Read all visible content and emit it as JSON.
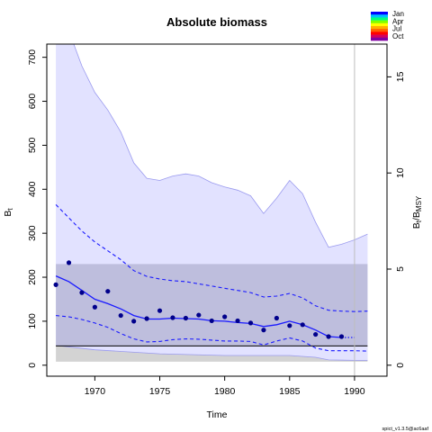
{
  "chart_data": {
    "type": "line",
    "title": "Absolute biomass",
    "xlabel": "Time",
    "ylabel": "B_t",
    "ylabel_right": "B_t/B_MSY",
    "xlim": [
      1966.3,
      1992.5
    ],
    "ylim": [
      -25,
      730
    ],
    "ylim_right_ratio": 43.7,
    "x_ticks": [
      1970,
      1975,
      1980,
      1985,
      1990
    ],
    "y_ticks": [
      0,
      100,
      200,
      300,
      400,
      500,
      600,
      700
    ],
    "y_right_ticks": [
      0,
      5,
      10,
      15
    ],
    "vertical_line_x": 1990,
    "bmsy": 43.7,
    "bmsy_ci": [
      8,
      230
    ],
    "b_ci_outer_upper": {
      "x": [
        1967,
        1968,
        1969,
        1970,
        1971,
        1972,
        1973,
        1974,
        1975,
        1976,
        1977,
        1978,
        1979,
        1980,
        1981,
        1982,
        1983,
        1984,
        1985,
        1986,
        1987,
        1988,
        1989,
        1990,
        1991
      ],
      "y": [
        760,
        760,
        680,
        620,
        580,
        530,
        460,
        425,
        420,
        430,
        435,
        430,
        415,
        405,
        398,
        385,
        345,
        380,
        420,
        390,
        325,
        268,
        275,
        285,
        298
      ]
    },
    "b_ci_outer_lower": {
      "x": [
        1967,
        1970,
        1975,
        1980,
        1985,
        1987,
        1988,
        1990,
        1991
      ],
      "y": [
        45,
        35,
        26,
        22,
        22,
        18,
        12,
        11,
        11
      ]
    },
    "series": [
      {
        "name": "B_t estimate",
        "x": [
          1967,
          1968,
          1969,
          1970,
          1971,
          1972,
          1973,
          1974,
          1975,
          1976,
          1977,
          1978,
          1979,
          1980,
          1981,
          1982,
          1983,
          1984,
          1985,
          1986,
          1987,
          1988,
          1989,
          1990
        ],
        "y": [
          203,
          190,
          170,
          150,
          140,
          128,
          113,
          105,
          105,
          107,
          106,
          105,
          101,
          100,
          97,
          95,
          88,
          92,
          100,
          92,
          80,
          65,
          63,
          63
        ]
      },
      {
        "name": "B_t upper CI",
        "x": [
          1967,
          1968,
          1969,
          1970,
          1971,
          1972,
          1973,
          1974,
          1975,
          1976,
          1977,
          1978,
          1979,
          1980,
          1981,
          1982,
          1983,
          1984,
          1985,
          1986,
          1987,
          1988,
          1989,
          1990,
          1991
        ],
        "y": [
          365,
          335,
          305,
          280,
          260,
          240,
          215,
          202,
          196,
          192,
          190,
          185,
          180,
          175,
          170,
          165,
          155,
          157,
          163,
          153,
          135,
          125,
          123,
          122,
          123
        ]
      },
      {
        "name": "B_t lower CI",
        "x": [
          1967,
          1968,
          1969,
          1970,
          1971,
          1972,
          1973,
          1974,
          1975,
          1976,
          1977,
          1978,
          1979,
          1980,
          1981,
          1982,
          1983,
          1984,
          1985,
          1986,
          1987,
          1988,
          1989,
          1990,
          1991
        ],
        "y": [
          113,
          110,
          104,
          96,
          86,
          72,
          60,
          53,
          54,
          58,
          60,
          59,
          57,
          55,
          55,
          54,
          46,
          55,
          62,
          55,
          39,
          33,
          33,
          33,
          32
        ]
      }
    ],
    "observations": {
      "x": [
        1967,
        1968,
        1969,
        1970,
        1971,
        1972,
        1973,
        1974,
        1975,
        1976,
        1977,
        1978,
        1979,
        1980,
        1981,
        1982,
        1983,
        1984,
        1985,
        1986,
        1987,
        1988,
        1989
      ],
      "y": [
        183,
        233,
        165,
        132,
        168,
        113,
        100,
        106,
        124,
        108,
        107,
        114,
        101,
        110,
        101,
        96,
        80,
        107,
        90,
        92,
        70,
        65,
        65
      ]
    },
    "legend": {
      "labels": [
        "Jan",
        "Apr",
        "Jul",
        "Oct"
      ],
      "colors": [
        "#0000ff",
        "#00bfff",
        "#00ff80",
        "#80ff00",
        "#ffff00",
        "#ffb000",
        "#ff6000",
        "#ff0000",
        "#d00060",
        "#8000a0"
      ],
      "placement": "top-right"
    },
    "colors": {
      "outer_ci_fill": "#e2e2ff",
      "outer_ci_stroke": "#9a9aee",
      "bmsy_band": "#b8b8d8",
      "bmsy_lower_band": "#d3d3d3",
      "lines": "#1a1aff",
      "points": "#00008b",
      "bmsy_line": "#000000",
      "vertical_line": "#bdbdbd"
    }
  },
  "footer": "spict_v1.3.5@ac6aaf"
}
